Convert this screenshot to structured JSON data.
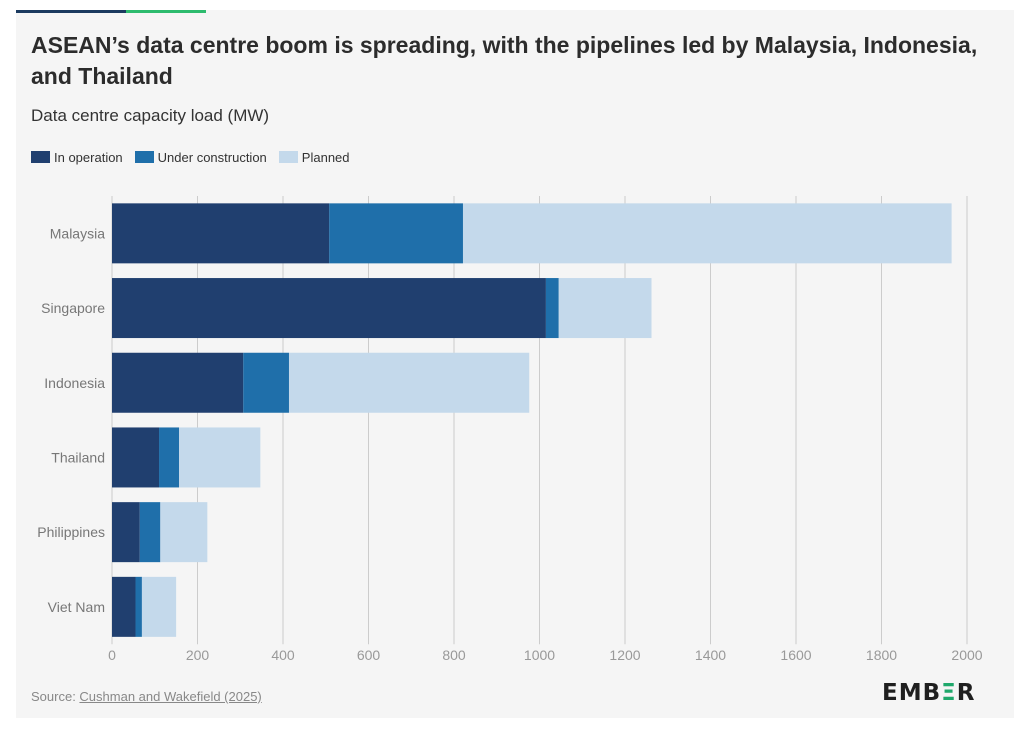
{
  "colors": {
    "in_operation": "#203f6f",
    "under_construction": "#1f6faa",
    "planned": "#c4d9eb",
    "grid": "#cccccc",
    "accent_bar_left": "#1b3a5f",
    "accent_bar_right": "#2dbb6e",
    "logo_accent": "#1fa86b"
  },
  "header": {
    "title": "ASEAN’s data centre boom is spreading, with the pipelines led by Malaysia, Indonesia, and Thailand",
    "subtitle": "Data centre capacity load (MW)"
  },
  "footer": {
    "source_prefix": "Source: ",
    "source_link": "Cushman and Wakefield (2025)",
    "logo_part1": "EMB",
    "logo_part2": "Ξ",
    "logo_part3": "R"
  },
  "chart_data": {
    "type": "bar",
    "orientation": "horizontal",
    "stacked": true,
    "title": "ASEAN’s data centre boom is spreading, with the pipelines led by Malaysia, Indonesia, and Thailand",
    "subtitle": "Data centre capacity load (MW)",
    "xlabel": "",
    "ylabel": "",
    "xlim": [
      0,
      2000
    ],
    "x_ticks": [
      0,
      200,
      400,
      600,
      800,
      1000,
      1200,
      1400,
      1600,
      1800,
      2000
    ],
    "grid": "vertical",
    "legend_position": "top-left",
    "categories": [
      "Malaysia",
      "Singapore",
      "Indonesia",
      "Thailand",
      "Philippines",
      "Viet Nam"
    ],
    "series": [
      {
        "name": "In operation",
        "values": [
          508,
          1015,
          307,
          110,
          65,
          55
        ]
      },
      {
        "name": "Under construction",
        "values": [
          313,
          30,
          107,
          47,
          48,
          15
        ]
      },
      {
        "name": "Planned",
        "values": [
          1143,
          217,
          562,
          190,
          110,
          80
        ]
      }
    ]
  }
}
